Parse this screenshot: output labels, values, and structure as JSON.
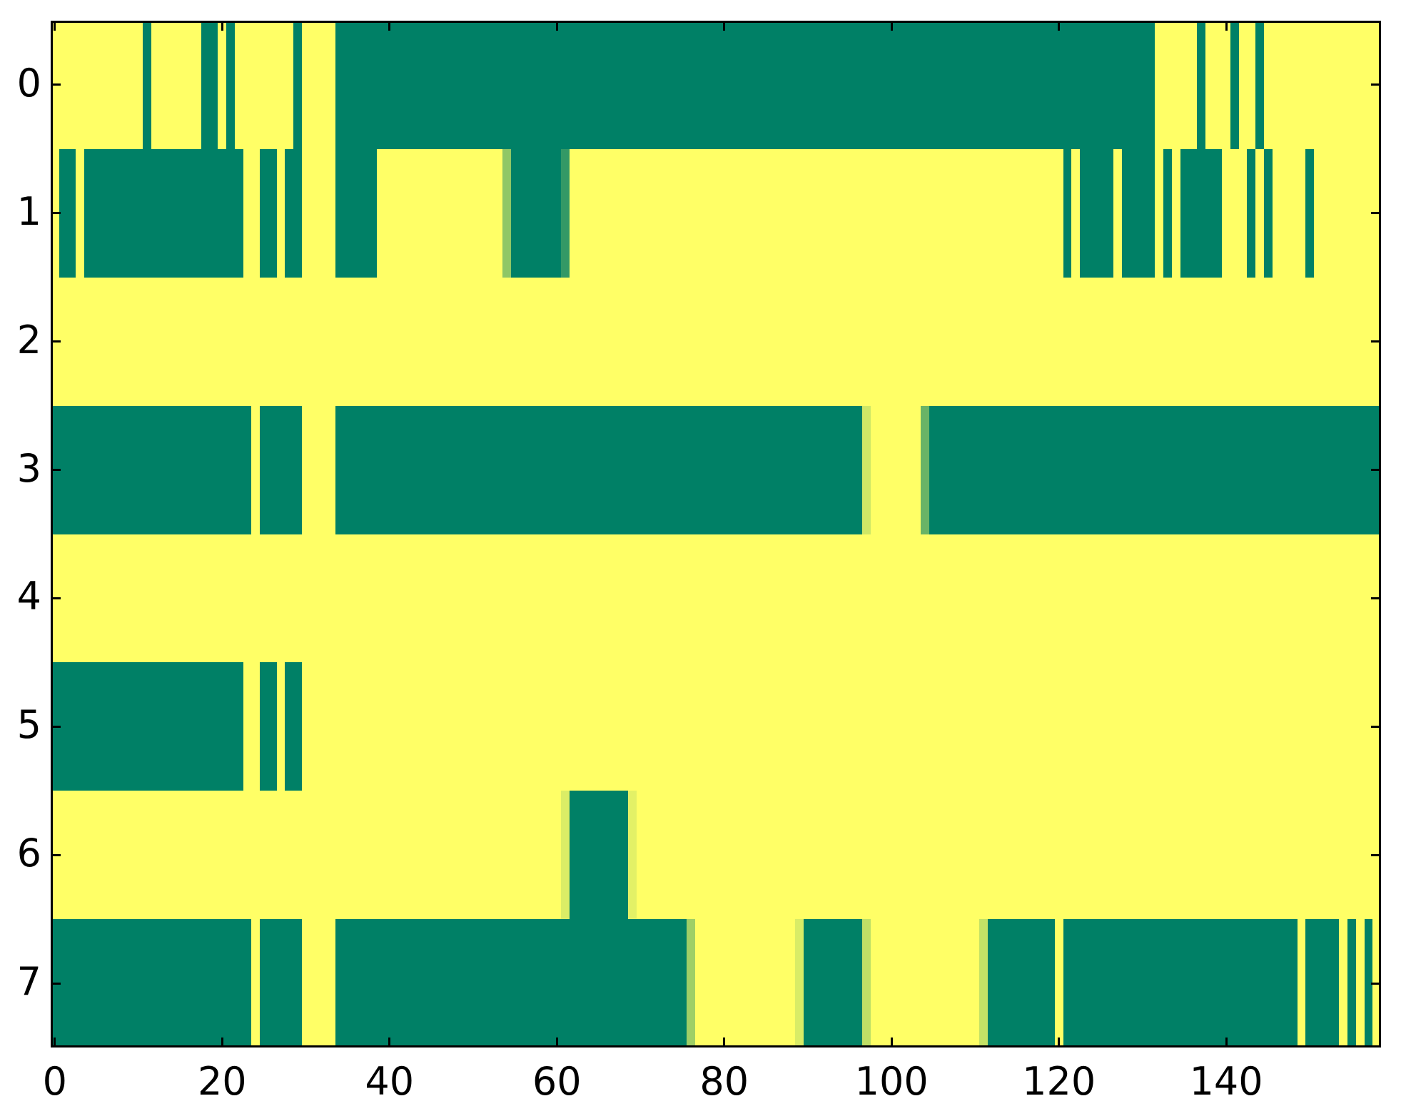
{
  "figure": {
    "background": "#ffffff",
    "axis_color": "#000000"
  },
  "axes": {
    "x_ticks": [
      {
        "value": 0,
        "label": "0"
      },
      {
        "value": 20,
        "label": "20"
      },
      {
        "value": 40,
        "label": "40"
      },
      {
        "value": 60,
        "label": "60"
      },
      {
        "value": 80,
        "label": "80"
      },
      {
        "value": 100,
        "label": "100"
      },
      {
        "value": 120,
        "label": "120"
      },
      {
        "value": 140,
        "label": "140"
      }
    ],
    "y_ticks": [
      {
        "row": 0,
        "label": "0"
      },
      {
        "row": 1,
        "label": "1"
      },
      {
        "row": 2,
        "label": "2"
      },
      {
        "row": 3,
        "label": "3"
      },
      {
        "row": 4,
        "label": "4"
      },
      {
        "row": 5,
        "label": "5"
      },
      {
        "row": 6,
        "label": "6"
      },
      {
        "row": 7,
        "label": "7"
      }
    ]
  },
  "chart_data": {
    "type": "heatmap",
    "colormap": "summer",
    "n_rows": 8,
    "n_cols": 159,
    "x_range": [
      -0.5,
      158.5
    ],
    "y_categories": [
      "0",
      "1",
      "2",
      "3",
      "4",
      "5",
      "6",
      "7"
    ],
    "value_colors": {
      "low_0": "#008066",
      "high_1": "#ffff66"
    },
    "grid": false,
    "legend": "none",
    "title": "",
    "xlabel": "",
    "ylabel": "",
    "rows_as_segments_start_end_value": [
      [
        [
          0,
          10,
          1
        ],
        [
          11,
          11,
          0
        ],
        [
          12,
          17,
          1
        ],
        [
          18,
          19,
          0
        ],
        [
          20,
          20,
          1
        ],
        [
          21,
          21,
          0
        ],
        [
          22,
          28,
          1
        ],
        [
          29,
          29,
          0
        ],
        [
          30,
          33,
          1
        ],
        [
          34,
          131,
          0
        ],
        [
          132,
          136,
          1
        ],
        [
          137,
          137,
          0
        ],
        [
          138,
          140,
          1
        ],
        [
          141,
          141,
          0
        ],
        [
          142,
          143,
          1
        ],
        [
          144,
          144,
          0
        ],
        [
          145,
          158,
          1
        ]
      ],
      [
        [
          0,
          0,
          1
        ],
        [
          1,
          2,
          0
        ],
        [
          3,
          3,
          1
        ],
        [
          4,
          22,
          0
        ],
        [
          23,
          24,
          1
        ],
        [
          25,
          26,
          0
        ],
        [
          27,
          27,
          1
        ],
        [
          28,
          29,
          0
        ],
        [
          30,
          33,
          1
        ],
        [
          34,
          38,
          0
        ],
        [
          39,
          53,
          1
        ],
        [
          54,
          54,
          0.56
        ],
        [
          55,
          60,
          0
        ],
        [
          61,
          61,
          0.2
        ],
        [
          62,
          120,
          1
        ],
        [
          121,
          121,
          0
        ],
        [
          122,
          122,
          1
        ],
        [
          123,
          126,
          0
        ],
        [
          127,
          127,
          1
        ],
        [
          128,
          131,
          0
        ],
        [
          132,
          132,
          1
        ],
        [
          133,
          133,
          0
        ],
        [
          134,
          134,
          1
        ],
        [
          135,
          139,
          0
        ],
        [
          140,
          142,
          1
        ],
        [
          143,
          143,
          0
        ],
        [
          144,
          144,
          1
        ],
        [
          145,
          145,
          0
        ],
        [
          146,
          149,
          1
        ],
        [
          150,
          150,
          0
        ],
        [
          151,
          158,
          1
        ]
      ],
      [
        [
          0,
          158,
          1
        ]
      ],
      [
        [
          0,
          23,
          0
        ],
        [
          24,
          24,
          1
        ],
        [
          25,
          29,
          0
        ],
        [
          30,
          33,
          1
        ],
        [
          34,
          96,
          0
        ],
        [
          97,
          97,
          0.81
        ],
        [
          98,
          103,
          1
        ],
        [
          104,
          104,
          0.41
        ],
        [
          105,
          158,
          0
        ]
      ],
      [
        [
          0,
          158,
          1
        ]
      ],
      [
        [
          0,
          22,
          0
        ],
        [
          23,
          24,
          1
        ],
        [
          25,
          26,
          0
        ],
        [
          27,
          27,
          1
        ],
        [
          28,
          29,
          0
        ],
        [
          30,
          158,
          1
        ]
      ],
      [
        [
          0,
          60,
          1
        ],
        [
          61,
          61,
          0.86
        ],
        [
          62,
          68,
          0
        ],
        [
          69,
          69,
          0.89
        ],
        [
          70,
          158,
          1
        ]
      ],
      [
        [
          0,
          23,
          0
        ],
        [
          24,
          24,
          1
        ],
        [
          25,
          29,
          0
        ],
        [
          30,
          33,
          1
        ],
        [
          34,
          75,
          0
        ],
        [
          76,
          76,
          0.62
        ],
        [
          77,
          88,
          1
        ],
        [
          89,
          89,
          0.85
        ],
        [
          90,
          96,
          0
        ],
        [
          97,
          97,
          0.75
        ],
        [
          98,
          110,
          1
        ],
        [
          111,
          111,
          0.77
        ],
        [
          112,
          119,
          0
        ],
        [
          120,
          120,
          1
        ],
        [
          121,
          148,
          0
        ],
        [
          149,
          149,
          1
        ],
        [
          150,
          153,
          0
        ],
        [
          154,
          154,
          1
        ],
        [
          155,
          155,
          0
        ],
        [
          156,
          156,
          1
        ],
        [
          157,
          157,
          0
        ],
        [
          158,
          158,
          1
        ]
      ]
    ]
  }
}
